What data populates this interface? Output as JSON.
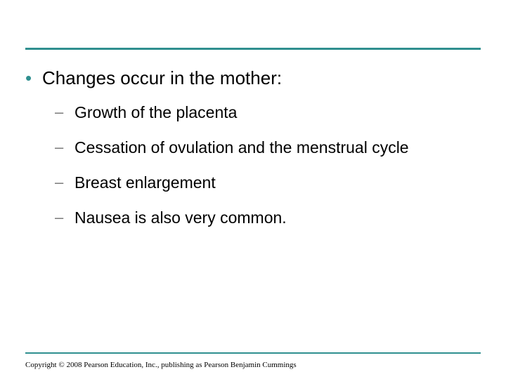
{
  "accent_color": "#2f8f8f",
  "main": {
    "bullet_char": "•",
    "text": "Changes occur in the mother:",
    "sub_dash": "–",
    "subs": [
      {
        "text": "Growth of the placenta"
      },
      {
        "text": "Cessation of ovulation and the menstrual cycle"
      },
      {
        "text": "Breast enlargement"
      },
      {
        "text": "Nausea is also very common."
      }
    ]
  },
  "copyright": "Copyright © 2008 Pearson Education, Inc., publishing as Pearson Benjamin Cummings"
}
